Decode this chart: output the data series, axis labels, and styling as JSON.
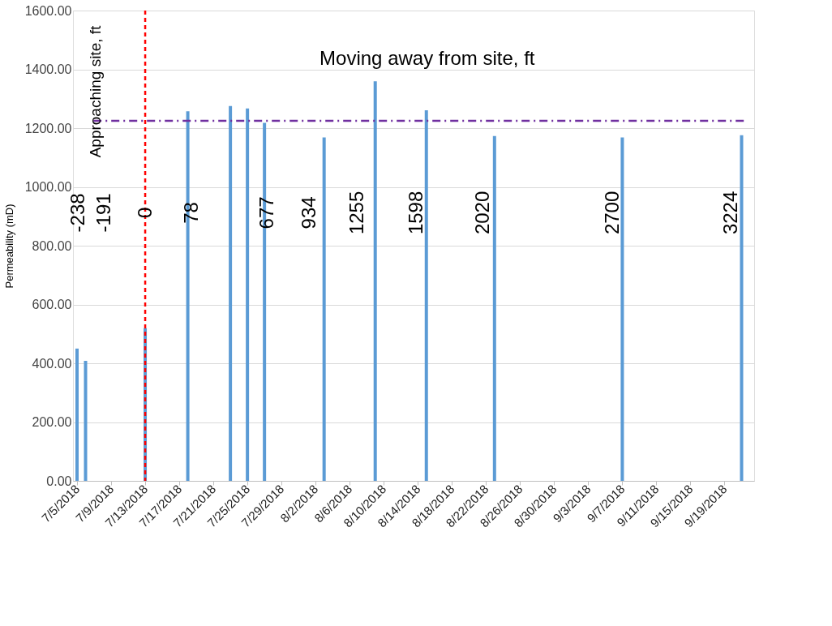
{
  "chart_data": {
    "type": "bar",
    "ylabel": "Permeability (mD)",
    "x": [
      "2018-07-05",
      "2018-07-06",
      "2018-07-13",
      "2018-07-18",
      "2018-07-23",
      "2018-07-25",
      "2018-07-27",
      "2018-08-03",
      "2018-08-09",
      "2018-08-15",
      "2018-08-23",
      "2018-09-07",
      "2018-09-21"
    ],
    "series": [
      {
        "color": "#5b9bd5",
        "values": [
          450,
          408,
          519,
          1257,
          1275,
          1267,
          1218,
          1168,
          1359,
          1261,
          1173,
          1168,
          1176
        ]
      }
    ],
    "xlim": [
      "2018-07-05",
      "2018-09-22"
    ],
    "xticks": [
      {
        "value": "2018-07-05",
        "label": "7/5/2018"
      },
      {
        "value": "2018-07-09",
        "label": "7/9/2018"
      },
      {
        "value": "2018-07-13",
        "label": "7/13/2018"
      },
      {
        "value": "2018-07-17",
        "label": "7/17/2018"
      },
      {
        "value": "2018-07-21",
        "label": "7/21/2018"
      },
      {
        "value": "2018-07-25",
        "label": "7/25/2018"
      },
      {
        "value": "2018-07-29",
        "label": "7/29/2018"
      },
      {
        "value": "2018-08-02",
        "label": "8/2/2018"
      },
      {
        "value": "2018-08-06",
        "label": "8/6/2018"
      },
      {
        "value": "2018-08-10",
        "label": "8/10/2018"
      },
      {
        "value": "2018-08-14",
        "label": "8/14/2018"
      },
      {
        "value": "2018-08-18",
        "label": "8/18/2018"
      },
      {
        "value": "2018-08-22",
        "label": "8/22/2018"
      },
      {
        "value": "2018-08-26",
        "label": "8/26/2018"
      },
      {
        "value": "2018-08-30",
        "label": "8/30/2018"
      },
      {
        "value": "2018-09-03",
        "label": "9/3/2018"
      },
      {
        "value": "2018-09-07",
        "label": "9/7/2018"
      },
      {
        "value": "2018-09-11",
        "label": "9/11/2018"
      },
      {
        "value": "2018-09-15",
        "label": "9/15/2018"
      },
      {
        "value": "2018-09-19",
        "label": "9/19/2018"
      }
    ],
    "ylim": [
      0,
      1600
    ],
    "yticks": [
      {
        "value": 0,
        "label": "0.00"
      },
      {
        "value": 200,
        "label": "200.00"
      },
      {
        "value": 400,
        "label": "400.00"
      },
      {
        "value": 600,
        "label": "600.00"
      },
      {
        "value": 800,
        "label": "800.00"
      },
      {
        "value": 1000,
        "label": "1000.00"
      },
      {
        "value": 1200,
        "label": "1200.00"
      },
      {
        "value": 1400,
        "label": "1400.00"
      },
      {
        "value": 1600,
        "label": "1600.00"
      }
    ],
    "grid": "y",
    "ref_lines": [
      {
        "axis": "x",
        "value": "2018-07-13",
        "color": "#ff0000",
        "line_style": "dashed"
      },
      {
        "axis": "y",
        "value": 1225,
        "color": "#7030a0",
        "line_style": "dashdot"
      }
    ],
    "annotations": [
      "Approaching site, ft",
      "Moving away from site, ft",
      "-238",
      "-191",
      "0",
      "78",
      "677",
      "934",
      "1255",
      "1598",
      "2020",
      "2700",
      "3224"
    ]
  }
}
